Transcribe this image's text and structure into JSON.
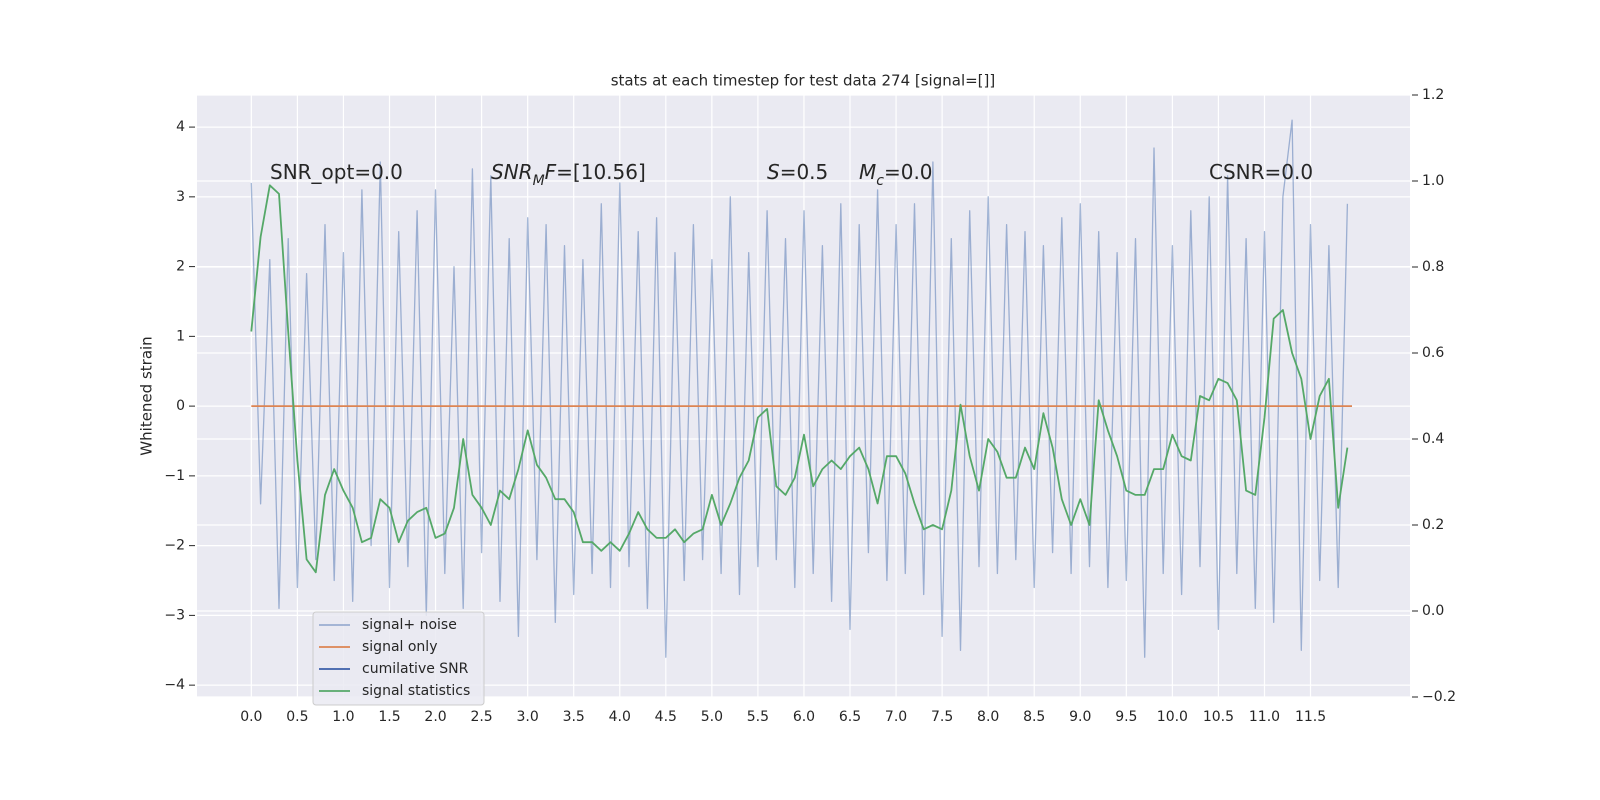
{
  "chart_data": {
    "type": "line",
    "title": "stats at each timestep for test data 274 [signal=[]]",
    "ylabel": "Whitened strain",
    "x": [
      0,
      0.1,
      0.2,
      0.3,
      0.4,
      0.5,
      0.6,
      0.7,
      0.8,
      0.9,
      1,
      1.1,
      1.2,
      1.3,
      1.4,
      1.5,
      1.6,
      1.7,
      1.8,
      1.9,
      2,
      2.1,
      2.2,
      2.3,
      2.4,
      2.5,
      2.6,
      2.7,
      2.8,
      2.9,
      3,
      3.1,
      3.2,
      3.3,
      3.4,
      3.5,
      3.6,
      3.7,
      3.8,
      3.9,
      4,
      4.1,
      4.2,
      4.3,
      4.4,
      4.5,
      4.6,
      4.7,
      4.8,
      4.9,
      5,
      5.1,
      5.2,
      5.3,
      5.4,
      5.5,
      5.6,
      5.7,
      5.8,
      5.9,
      6,
      6.1,
      6.2,
      6.3,
      6.4,
      6.5,
      6.6,
      6.7,
      6.8,
      6.9,
      7,
      7.1,
      7.2,
      7.3,
      7.4,
      7.5,
      7.6,
      7.7,
      7.8,
      7.9,
      8,
      8.1,
      8.2,
      8.3,
      8.4,
      8.5,
      8.6,
      8.7,
      8.8,
      8.9,
      9,
      9.1,
      9.2,
      9.3,
      9.4,
      9.5,
      9.6,
      9.7,
      9.8,
      9.9,
      10,
      10.1,
      10.2,
      10.3,
      10.4,
      10.5,
      10.6,
      10.7,
      10.8,
      10.9,
      11,
      11.1,
      11.2,
      11.3,
      11.4,
      11.5,
      11.6,
      11.7,
      11.8,
      11.9
    ],
    "series": [
      {
        "name": "signal+ noise",
        "color": "#4c72b0",
        "opacity": 0.5,
        "values": [
          3.2,
          -1.4,
          2.1,
          -2.9,
          2.4,
          -2.6,
          1.9,
          -2.2,
          2.6,
          -2.5,
          2.2,
          -2.8,
          3.1,
          -2.0,
          3.5,
          -2.6,
          2.5,
          -2.3,
          2.8,
          -3.0,
          3.1,
          -2.4,
          2.0,
          -2.9,
          3.4,
          -2.1,
          3.3,
          -2.8,
          2.4,
          -3.3,
          2.7,
          -2.2,
          2.6,
          -3.1,
          2.3,
          -2.7,
          2.1,
          -2.4,
          2.9,
          -2.6,
          3.2,
          -2.3,
          2.5,
          -2.9,
          2.7,
          -3.6,
          2.2,
          -2.5,
          2.6,
          -2.2,
          2.1,
          -2.4,
          3.0,
          -2.7,
          2.2,
          -2.3,
          2.8,
          -2.2,
          2.4,
          -2.6,
          2.8,
          -2.4,
          2.3,
          -2.8,
          2.9,
          -3.2,
          2.6,
          -2.1,
          3.1,
          -2.5,
          2.6,
          -2.4,
          2.9,
          -2.7,
          3.5,
          -3.3,
          2.4,
          -3.5,
          2.8,
          -2.3,
          3.0,
          -2.4,
          2.6,
          -2.2,
          2.5,
          -2.6,
          2.3,
          -2.1,
          2.7,
          -2.4,
          2.9,
          -2.3,
          2.5,
          -2.6,
          2.2,
          -2.5,
          2.4,
          -3.6,
          3.7,
          -2.4,
          2.3,
          -2.7,
          2.8,
          -2.3,
          3.0,
          -3.2,
          3.3,
          -2.4,
          2.4,
          -2.9,
          2.5,
          -3.1,
          3.0,
          4.1,
          -3.5,
          2.6,
          -2.5,
          2.3,
          -2.6,
          2.9
        ]
      },
      {
        "name": "signal only",
        "color": "#dd8452",
        "x": [
          0,
          11.95
        ],
        "values": [
          0,
          0
        ]
      },
      {
        "name": "cumilative SNR",
        "color": "#4c72b0",
        "x": [],
        "values": []
      },
      {
        "name": "signal statistics",
        "color": "#55a868",
        "axis": "y2",
        "values": [
          0.65,
          0.87,
          0.99,
          0.97,
          0.65,
          0.35,
          0.12,
          0.09,
          0.27,
          0.33,
          0.28,
          0.24,
          0.16,
          0.17,
          0.26,
          0.24,
          0.16,
          0.21,
          0.23,
          0.24,
          0.17,
          0.18,
          0.24,
          0.4,
          0.27,
          0.24,
          0.2,
          0.28,
          0.26,
          0.33,
          0.42,
          0.34,
          0.31,
          0.26,
          0.26,
          0.23,
          0.16,
          0.16,
          0.14,
          0.16,
          0.14,
          0.18,
          0.23,
          0.19,
          0.17,
          0.17,
          0.19,
          0.16,
          0.18,
          0.19,
          0.27,
          0.2,
          0.25,
          0.31,
          0.35,
          0.45,
          0.47,
          0.29,
          0.27,
          0.31,
          0.41,
          0.29,
          0.33,
          0.35,
          0.33,
          0.36,
          0.38,
          0.33,
          0.25,
          0.36,
          0.36,
          0.32,
          0.25,
          0.19,
          0.2,
          0.19,
          0.28,
          0.48,
          0.36,
          0.28,
          0.4,
          0.37,
          0.31,
          0.31,
          0.38,
          0.33,
          0.46,
          0.38,
          0.26,
          0.2,
          0.26,
          0.2,
          0.49,
          0.42,
          0.36,
          0.28,
          0.27,
          0.27,
          0.33,
          0.33,
          0.41,
          0.36,
          0.35,
          0.5,
          0.49,
          0.54,
          0.53,
          0.49,
          0.28,
          0.27,
          0.45,
          0.68,
          0.7,
          0.6,
          0.54,
          0.4,
          0.5,
          0.54,
          0.24,
          0.38
        ]
      }
    ],
    "xlim": [
      -0.59,
      12.58
    ],
    "xticks": [
      {
        "value": 0,
        "label": "0.0"
      },
      0.5,
      {
        "value": 1,
        "label": "1.0"
      },
      1.5,
      {
        "value": 2,
        "label": "2.0"
      },
      2.5,
      {
        "value": 3,
        "label": "3.0"
      },
      3.5,
      {
        "value": 4,
        "label": "4.0"
      },
      4.5,
      {
        "value": 5,
        "label": "5.0"
      },
      5.5,
      {
        "value": 6,
        "label": "6.0"
      },
      6.5,
      {
        "value": 7,
        "label": "7.0"
      },
      7.5,
      {
        "value": 8,
        "label": "8.0"
      },
      8.5,
      {
        "value": 9,
        "label": "9.0"
      },
      9.5,
      {
        "value": 10,
        "label": "10.0"
      },
      10.5,
      {
        "value": 11,
        "label": "11.0"
      },
      11.5
    ],
    "ylim": [
      -4.17,
      4.46
    ],
    "yticks": [
      {
        "value": -4,
        "label": "−4"
      },
      {
        "value": -3,
        "label": "−3"
      },
      {
        "value": -2,
        "label": "−2"
      },
      {
        "value": -1,
        "label": "−1"
      },
      0,
      1,
      2,
      3,
      4
    ],
    "y2lim": [
      -0.2,
      1.2
    ],
    "y2ticks": [
      {
        "value": -0.2,
        "label": "−0.2"
      },
      {
        "value": 0,
        "label": "0.0"
      },
      0.2,
      0.4,
      0.6,
      0.8,
      {
        "value": 1,
        "label": "1.0"
      },
      1.2
    ],
    "grid": true,
    "annotations": [
      [
        {
          "text": "SNR_opt=0.0"
        }
      ],
      [
        {
          "text": "SNR",
          "italic": true
        },
        {
          "text": "M",
          "italic": true,
          "sub": true
        },
        {
          "text": "F",
          "italic": true
        },
        {
          "text": "=[10.56]"
        }
      ],
      [
        {
          "text": "S",
          "italic": true
        },
        {
          "text": "=0.5"
        }
      ],
      [
        {
          "text": "M",
          "italic": true
        },
        {
          "text": "c",
          "italic": true,
          "sub": true
        },
        {
          "text": "=0.0"
        }
      ],
      [
        {
          "text": "CSNR=0.0"
        }
      ]
    ]
  }
}
